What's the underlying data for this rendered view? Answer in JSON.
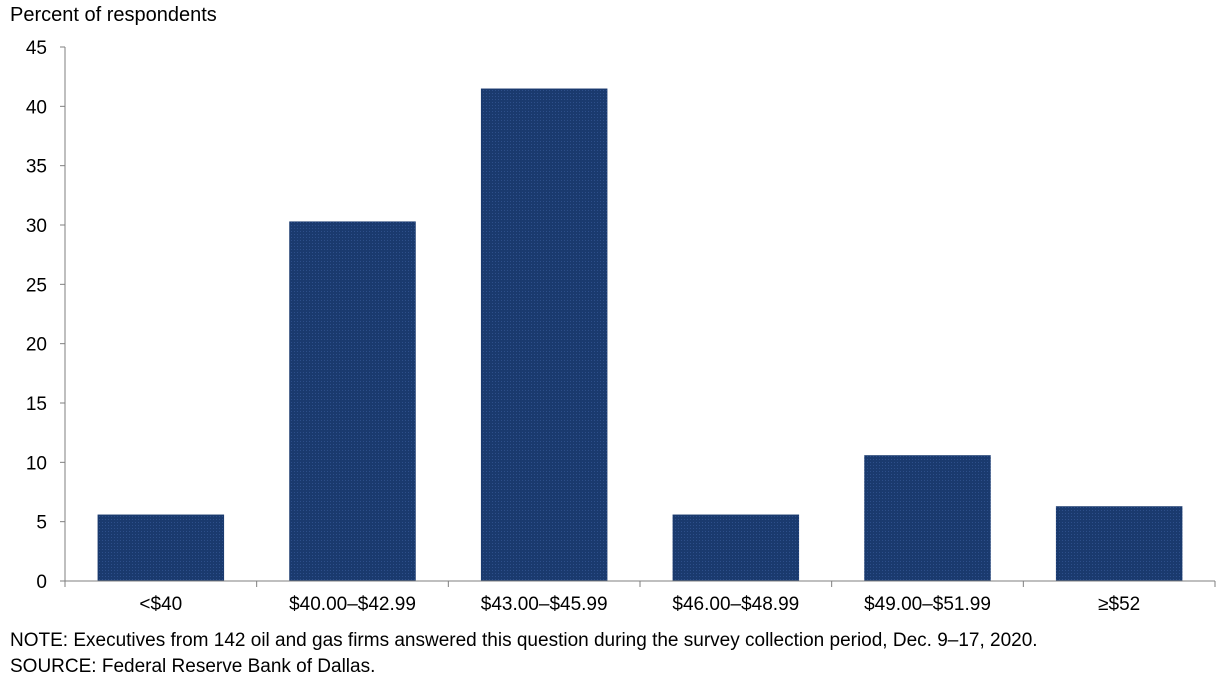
{
  "chart_data": {
    "type": "bar",
    "ylabel": "Percent of respondents",
    "categories": [
      "<$40",
      "$40.00–$42.99",
      "$43.00–$45.99",
      "$46.00–$48.99",
      "$49.00–$51.99",
      "≥$52"
    ],
    "values": [
      5.6,
      30.3,
      41.5,
      5.6,
      10.6,
      6.3
    ],
    "ylim": [
      0,
      45
    ],
    "yticks": [
      0,
      5,
      10,
      15,
      20,
      25,
      30,
      35,
      40,
      45
    ],
    "bar_color": "#1a3a6e",
    "grid": false
  },
  "notes": {
    "note": "NOTE: Executives from 142 oil and gas firms answered this question during the survey collection period, Dec. 9–17, 2020.",
    "source": "SOURCE: Federal Reserve Bank of Dallas."
  }
}
